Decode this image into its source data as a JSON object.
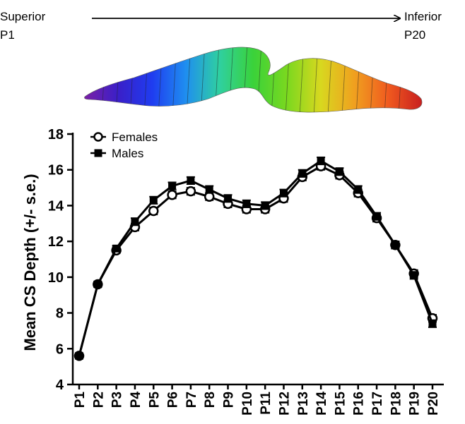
{
  "header": {
    "left_top": "Superior",
    "left_bottom": "P1",
    "right_top": "Inferior",
    "right_bottom": "P20"
  },
  "colors": {
    "axis": "#000000",
    "line": "#000000",
    "female_marker_fill": "#ffffff",
    "male_marker_fill": "#000000",
    "surface_gradient": [
      "#7a1fa6",
      "#3a1fc8",
      "#1f3cf0",
      "#1f8ef0",
      "#2fd0a0",
      "#3ad23a",
      "#7ad81f",
      "#d8d81f",
      "#f0a01f",
      "#f05a1f",
      "#c81f1f"
    ]
  },
  "chart_data": {
    "type": "line",
    "title": "",
    "xlabel": "",
    "ylabel": "Mean CS Depth (+/- s.e.)",
    "ylim": [
      4,
      18
    ],
    "yticks": [
      "4",
      "6",
      "8",
      "10",
      "12",
      "14",
      "16",
      "18"
    ],
    "categories": [
      "P1",
      "P2",
      "P3",
      "P4",
      "P5",
      "P6",
      "P7",
      "P8",
      "P9",
      "P10",
      "P11",
      "P12",
      "P13",
      "P14",
      "P15",
      "P16",
      "P17",
      "P18",
      "P19",
      "P20"
    ],
    "grid": false,
    "legend_position": "top-left",
    "series": [
      {
        "name": "Females",
        "marker": "open-circle",
        "values": [
          5.6,
          9.6,
          11.5,
          12.8,
          13.7,
          14.6,
          14.8,
          14.5,
          14.1,
          13.8,
          13.8,
          14.4,
          15.6,
          16.2,
          15.7,
          14.7,
          13.3,
          11.8,
          10.2,
          7.7
        ],
        "errors": [
          0.15,
          0.15,
          0.15,
          0.2,
          0.2,
          0.2,
          0.2,
          0.2,
          0.2,
          0.2,
          0.2,
          0.2,
          0.2,
          0.2,
          0.2,
          0.2,
          0.2,
          0.2,
          0.2,
          0.2
        ]
      },
      {
        "name": "Males",
        "marker": "filled-square",
        "values": [
          5.6,
          9.6,
          11.6,
          13.1,
          14.3,
          15.1,
          15.4,
          14.9,
          14.4,
          14.1,
          14.0,
          14.7,
          15.8,
          16.5,
          15.9,
          14.9,
          13.4,
          11.8,
          10.1,
          7.4
        ],
        "errors": [
          0.15,
          0.15,
          0.15,
          0.2,
          0.2,
          0.2,
          0.2,
          0.2,
          0.2,
          0.2,
          0.2,
          0.2,
          0.2,
          0.2,
          0.2,
          0.2,
          0.2,
          0.2,
          0.2,
          0.2
        ]
      }
    ]
  }
}
